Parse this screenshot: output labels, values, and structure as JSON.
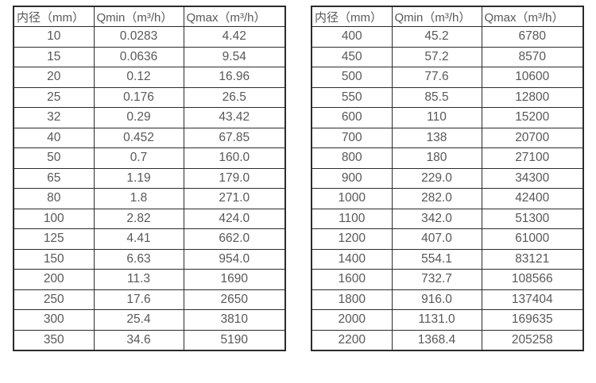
{
  "accent_colors": {
    "border": "#2b2b2b",
    "text": "#58585a",
    "background": "#ffffff"
  },
  "tables": [
    {
      "name": "flow-spec-small-diameters",
      "headers": [
        "内径（mm）",
        "Qmin（m³/h）",
        "Qmax（m³/h）"
      ],
      "rows": [
        [
          "10",
          "0.0283",
          "4.42"
        ],
        [
          "15",
          "0.0636",
          "9.54"
        ],
        [
          "20",
          "0.12",
          "16.96"
        ],
        [
          "25",
          "0.176",
          "26.5"
        ],
        [
          "32",
          "0.29",
          "43.42"
        ],
        [
          "40",
          "0.452",
          "67.85"
        ],
        [
          "50",
          "0.7",
          "160.0"
        ],
        [
          "65",
          "1.19",
          "179.0"
        ],
        [
          "80",
          "1.8",
          "271.0"
        ],
        [
          "100",
          "2.82",
          "424.0"
        ],
        [
          "125",
          "4.41",
          "662.0"
        ],
        [
          "150",
          "6.63",
          "954.0"
        ],
        [
          "200",
          "11.3",
          "1690"
        ],
        [
          "250",
          "17.6",
          "2650"
        ],
        [
          "300",
          "25.4",
          "3810"
        ],
        [
          "350",
          "34.6",
          "5190"
        ]
      ]
    },
    {
      "name": "flow-spec-large-diameters",
      "headers": [
        "内径（mm）",
        "Qmin（m³/h）",
        "Qmax（m³/h）"
      ],
      "rows": [
        [
          "400",
          "45.2",
          "6780"
        ],
        [
          "450",
          "57.2",
          "8570"
        ],
        [
          "500",
          "77.6",
          "10600"
        ],
        [
          "550",
          "85.5",
          "12800"
        ],
        [
          "600",
          "110",
          "15200"
        ],
        [
          "700",
          "138",
          "20700"
        ],
        [
          "800",
          "180",
          "27100"
        ],
        [
          "900",
          "229.0",
          "34300"
        ],
        [
          "1000",
          "282.0",
          "42400"
        ],
        [
          "1100",
          "342.0",
          "51300"
        ],
        [
          "1200",
          "407.0",
          "61000"
        ],
        [
          "1400",
          "554.1",
          "83121"
        ],
        [
          "1600",
          "732.7",
          "108566"
        ],
        [
          "1800",
          "916.0",
          "137404"
        ],
        [
          "2000",
          "1131.0",
          "169635"
        ],
        [
          "2200",
          "1368.4",
          "205258"
        ]
      ]
    }
  ]
}
